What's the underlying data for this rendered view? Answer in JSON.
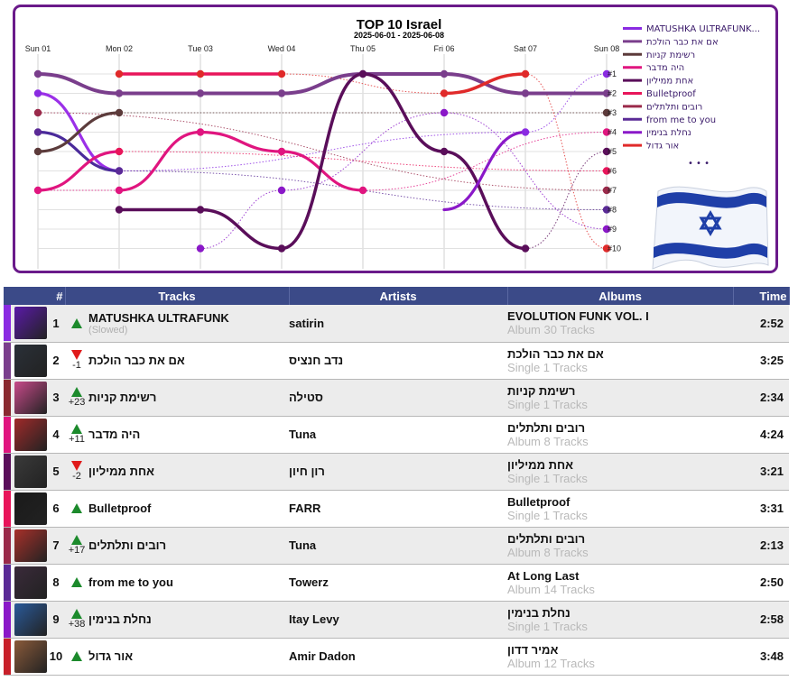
{
  "chart_data": {
    "type": "line",
    "title": "TOP 10 Israel",
    "subtitle": "2025-06-01 - 2025-06-08",
    "x": [
      "Sun 01",
      "Mon 02",
      "Tue 03",
      "Wed 04",
      "Thu 05",
      "Fri 06",
      "Sat 07",
      "Sun 08"
    ],
    "rank_labels": [
      "#1",
      "#2",
      "#3",
      "#4",
      "#5",
      "#6",
      "#7",
      "#8",
      "#9",
      "#10"
    ],
    "ylim": [
      1,
      10
    ],
    "y_inverted": true,
    "series": [
      {
        "name": "MATUSHKA ULTRAFUNK...",
        "color": "#8a2be2",
        "ranks": [
          2,
          6,
          null,
          null,
          null,
          null,
          4,
          1
        ]
      },
      {
        "name": "אם את כבר הולכת",
        "color": "#7a3e8c",
        "ranks": [
          1,
          2,
          2,
          2,
          1,
          1,
          2,
          2
        ]
      },
      {
        "name": "רשימת קניות",
        "color": "#5c3a3a",
        "ranks": [
          5,
          3,
          null,
          null,
          null,
          null,
          null,
          3
        ]
      },
      {
        "name": "היה מדבר",
        "color": "#e0157f",
        "ranks": [
          7,
          7,
          4,
          5,
          7,
          null,
          null,
          4
        ]
      },
      {
        "name": "אחת ממיליון",
        "color": "#5a0e5a",
        "ranks": [
          null,
          8,
          8,
          10,
          1,
          5,
          10,
          5
        ]
      },
      {
        "name": "Bulletproof",
        "color": "#e8155a",
        "ranks": [
          null,
          5,
          null,
          null,
          null,
          null,
          null,
          6
        ]
      },
      {
        "name": "רובים ותלתלים",
        "color": "#9a2a4a",
        "ranks": [
          3,
          null,
          null,
          null,
          null,
          null,
          null,
          7
        ]
      },
      {
        "name": "from me to you",
        "color": "#5a2a96",
        "ranks": [
          4,
          6,
          null,
          null,
          null,
          null,
          null,
          8
        ]
      },
      {
        "name": "נחלת בנימין",
        "color": "#8a18c8",
        "ranks": [
          null,
          null,
          10,
          7,
          null,
          3,
          null,
          9
        ]
      },
      {
        "name": "אור גדול",
        "color": "#e02a2a",
        "ranks": [
          null,
          1,
          1,
          1,
          null,
          2,
          1,
          10
        ]
      }
    ],
    "highlighted_tracks": [
      {
        "name": "אם את כבר הולכת",
        "color": "#7a3e8c",
        "ranks": [
          1,
          2,
          2,
          2,
          1,
          1,
          2,
          2
        ]
      },
      {
        "name": "MATUSHKA ULTRAFUNK",
        "color": "#9b30e8",
        "ranks": [
          2,
          6
        ]
      },
      {
        "name": "from me to you",
        "color": "#4a2a9a",
        "ranks": [
          4,
          6
        ]
      },
      {
        "name": "רשימת קניות",
        "color": "#5c3c3c",
        "ranks": [
          5,
          3
        ]
      },
      {
        "name": "היה מדבר",
        "color": "#e0157f",
        "ranks": [
          7,
          5,
          4,
          5,
          7
        ]
      },
      {
        "name": "אחת ממיליון",
        "color": "#5a0e5a",
        "ranks": [
          8,
          8,
          10,
          1,
          5,
          10
        ]
      },
      {
        "name": "נחלת בנימין",
        "color": "#8a18c8",
        "ranks": [
          8,
          4
        ]
      },
      {
        "name": "אור גדול",
        "color": "#e02a2a",
        "ranks": [
          2,
          1
        ]
      },
      {
        "name": "Bulletproof",
        "color": "#e8155a",
        "ranks": [
          1,
          1,
          1
        ]
      }
    ],
    "legend_position": "right",
    "legend_more": "• • •",
    "grid": true
  },
  "table": {
    "headers": {
      "rank": "#",
      "tracks": "Tracks",
      "artists": "Artists",
      "albums": "Albums",
      "time": "Time"
    },
    "rows": [
      {
        "rank": "1",
        "dir": "up",
        "change": "",
        "track": "MATUSHKA ULTRAFUNK",
        "track_sub": "(Slowed)",
        "artist": "satirin",
        "album": "EVOLUTION FUNK VOL. I",
        "album_sub": "Album 30 Tracks",
        "time": "2:52",
        "color": "#8a2be2",
        "cover": "#5a1aa8"
      },
      {
        "rank": "2",
        "dir": "down",
        "change": "-1",
        "track": "אם את כבר הולכת",
        "track_sub": "",
        "artist": "נדב חנציס",
        "album": "אם את כבר הולכת",
        "album_sub": "Single 1 Tracks",
        "time": "3:25",
        "color": "#7a3e8c",
        "cover": "#2a3038"
      },
      {
        "rank": "3",
        "dir": "up",
        "change": "+23",
        "track": "רשימת קניות",
        "track_sub": "",
        "artist": "סטילה",
        "album": "רשימת קניות",
        "album_sub": "Single 1 Tracks",
        "time": "2:34",
        "color": "#8a2a30",
        "cover": "#c84a8a"
      },
      {
        "rank": "4",
        "dir": "up",
        "change": "+11",
        "track": "היה מדבר",
        "track_sub": "",
        "artist": "Tuna",
        "album": "רובים ותלתלים",
        "album_sub": "Album 8 Tracks",
        "time": "4:24",
        "color": "#e0157f",
        "cover": "#a02a2a"
      },
      {
        "rank": "5",
        "dir": "down",
        "change": "-2",
        "track": "אחת ממיליון",
        "track_sub": "",
        "artist": "רון חיון",
        "album": "אחת ממיליון",
        "album_sub": "Single 1 Tracks",
        "time": "3:21",
        "color": "#5a0e5a",
        "cover": "#3a3a3a"
      },
      {
        "rank": "6",
        "dir": "up",
        "change": "",
        "track": "Bulletproof",
        "track_sub": "",
        "artist": "FARR",
        "album": "Bulletproof",
        "album_sub": "Single 1 Tracks",
        "time": "3:31",
        "color": "#e8155a",
        "cover": "#1a1a1a"
      },
      {
        "rank": "7",
        "dir": "up",
        "change": "+17",
        "track": "רובים ותלתלים",
        "track_sub": "",
        "artist": "Tuna",
        "album": "רובים ותלתלים",
        "album_sub": "Album 8 Tracks",
        "time": "2:13",
        "color": "#9a2a4a",
        "cover": "#a8302a"
      },
      {
        "rank": "8",
        "dir": "up",
        "change": "",
        "track": "from me to you",
        "track_sub": "",
        "artist": "Towerz",
        "album": "At Long Last",
        "album_sub": "Album 14 Tracks",
        "time": "2:50",
        "color": "#5a2a96",
        "cover": "#3a2a3a"
      },
      {
        "rank": "9",
        "dir": "up",
        "change": "+38",
        "track": "נחלת בנימין",
        "track_sub": "",
        "artist": "Itay Levy",
        "album": "נחלת בנימין",
        "album_sub": "Single 1 Tracks",
        "time": "2:58",
        "color": "#8a18c8",
        "cover": "#2a5a9a"
      },
      {
        "rank": "10",
        "dir": "up",
        "change": "",
        "track": "אור גדול",
        "track_sub": "",
        "artist": "Amir Dadon",
        "album": "אמיר דדון",
        "album_sub": "Album 12 Tracks",
        "time": "3:48",
        "color": "#c8202a",
        "cover": "#8a5a3a"
      }
    ]
  },
  "colors": {
    "panel_border": "#6a1a8a",
    "header_bg": "#3b4a88",
    "up": "#1c8a2c",
    "down": "#e01a1a",
    "flag_blue": "#1f3fa8"
  },
  "flag": {
    "icon": "israel-flag-icon"
  }
}
